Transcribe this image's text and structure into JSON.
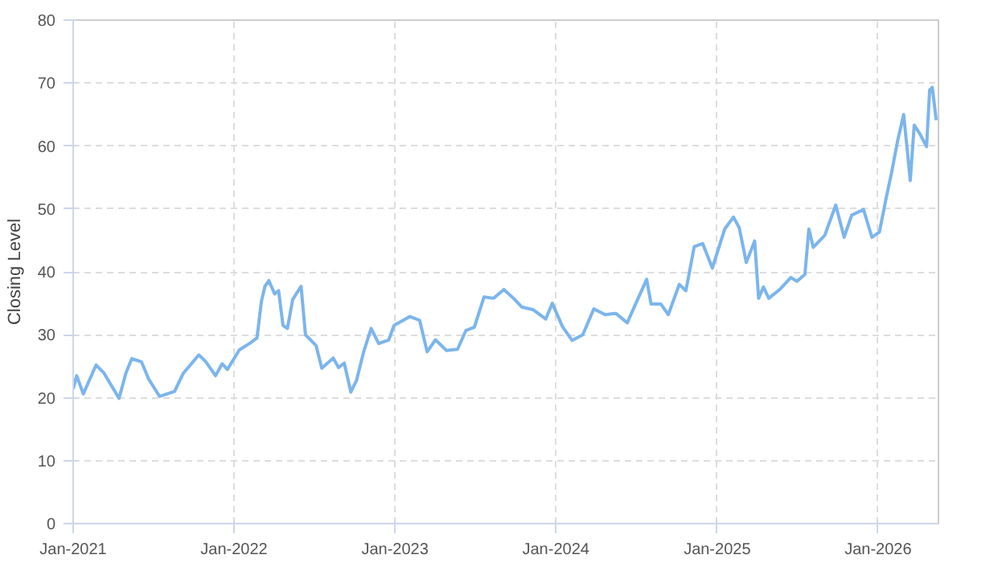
{
  "chart_data": {
    "type": "line",
    "ylabel": "Closing Level",
    "x": [
      "2021-01-01",
      "2021-01-09",
      "2021-01-24",
      "2021-02-22",
      "2021-03-12",
      "2021-04-15",
      "2021-05-01",
      "2021-05-14",
      "2021-06-05",
      "2021-06-21",
      "2021-07-16",
      "2021-08-19",
      "2021-09-08",
      "2021-10-13",
      "2021-10-28",
      "2021-11-20",
      "2021-12-05",
      "2021-12-17",
      "2022-01-13",
      "2022-02-07",
      "2022-02-22",
      "2022-03-04",
      "2022-03-12",
      "2022-03-21",
      "2022-04-03",
      "2022-04-12",
      "2022-04-22",
      "2022-05-02",
      "2022-05-14",
      "2022-06-02",
      "2022-06-12",
      "2022-07-06",
      "2022-07-19",
      "2022-08-14",
      "2022-08-26",
      "2022-09-08",
      "2022-09-23",
      "2022-10-06",
      "2022-10-22",
      "2022-11-08",
      "2022-11-25",
      "2022-12-18",
      "2022-12-30",
      "2023-02-04",
      "2023-02-26",
      "2023-03-15",
      "2023-04-03",
      "2023-04-28",
      "2023-05-23",
      "2023-06-11",
      "2023-06-30",
      "2023-07-22",
      "2023-08-13",
      "2023-09-05",
      "2023-09-27",
      "2023-10-16",
      "2023-11-10",
      "2023-12-09",
      "2023-12-24",
      "2024-01-16",
      "2024-02-07",
      "2024-03-02",
      "2024-03-27",
      "2024-04-22",
      "2024-05-16",
      "2024-06-11",
      "2024-06-30",
      "2024-07-25",
      "2024-08-04",
      "2024-08-26",
      "2024-09-12",
      "2024-10-07",
      "2024-10-22",
      "2024-11-10",
      "2024-11-29",
      "2024-12-21",
      "2025-01-18",
      "2025-02-07",
      "2025-02-20",
      "2025-03-08",
      "2025-03-27",
      "2025-04-05",
      "2025-04-16",
      "2025-04-28",
      "2025-05-23",
      "2025-06-17",
      "2025-07-01",
      "2025-07-19",
      "2025-07-28",
      "2025-08-07",
      "2025-09-02",
      "2025-09-27",
      "2025-10-16",
      "2025-11-02",
      "2025-11-29",
      "2025-12-18",
      "2026-01-04",
      "2026-01-19",
      "2026-02-01",
      "2026-02-14",
      "2026-02-28",
      "2026-03-09",
      "2026-03-15",
      "2026-03-24",
      "2026-04-06",
      "2026-04-21",
      "2026-04-28",
      "2026-05-04",
      "2026-05-13"
    ],
    "series": [
      {
        "color": "#7cb5ec",
        "values": [
          21.4,
          23.5,
          20.6,
          25.2,
          23.9,
          19.9,
          24.0,
          26.2,
          25.7,
          23.0,
          20.2,
          21.0,
          23.9,
          26.8,
          25.8,
          23.5,
          25.4,
          24.5,
          27.6,
          28.7,
          29.5,
          35.3,
          37.7,
          38.6,
          36.5,
          37.0,
          31.5,
          31.0,
          35.6,
          37.7,
          30.0,
          28.3,
          24.7,
          26.3,
          24.8,
          25.5,
          20.9,
          22.8,
          27.3,
          31.0,
          28.6,
          29.2,
          31.5,
          32.9,
          32.3,
          27.3,
          29.2,
          27.5,
          27.7,
          30.7,
          31.2,
          36.0,
          35.8,
          37.2,
          35.8,
          34.4,
          34.0,
          32.5,
          35.0,
          31.3,
          29.1,
          30.0,
          34.1,
          33.2,
          33.4,
          31.9,
          34.9,
          38.8,
          34.9,
          34.9,
          33.2,
          38.0,
          37.0,
          44.0,
          44.5,
          40.6,
          46.8,
          48.7,
          47.0,
          41.5,
          44.9,
          35.8,
          37.6,
          35.8,
          37.2,
          39.1,
          38.5,
          39.6,
          46.8,
          43.9,
          45.8,
          50.6,
          45.5,
          49.0,
          49.9,
          45.5,
          46.3,
          51.6,
          55.9,
          60.7,
          65.0,
          58.8,
          54.5,
          63.3,
          61.9,
          59.9,
          68.9,
          69.3,
          64.1
        ]
      }
    ],
    "xlim": [
      "2021-01-01",
      "2026-05-18"
    ],
    "xticks": [
      {
        "value": "2021-01-01",
        "label": "Jan-2021"
      },
      {
        "value": "2022-01-01",
        "label": "Jan-2022"
      },
      {
        "value": "2023-01-01",
        "label": "Jan-2023"
      },
      {
        "value": "2024-01-01",
        "label": "Jan-2024"
      },
      {
        "value": "2025-01-01",
        "label": "Jan-2025"
      },
      {
        "value": "2026-01-01",
        "label": "Jan-2026"
      }
    ],
    "ylim": [
      0,
      80
    ],
    "yticks": [
      0,
      10,
      20,
      30,
      40,
      50,
      60,
      70,
      80
    ],
    "grid": true,
    "marker": "none",
    "line_style": "solid"
  }
}
